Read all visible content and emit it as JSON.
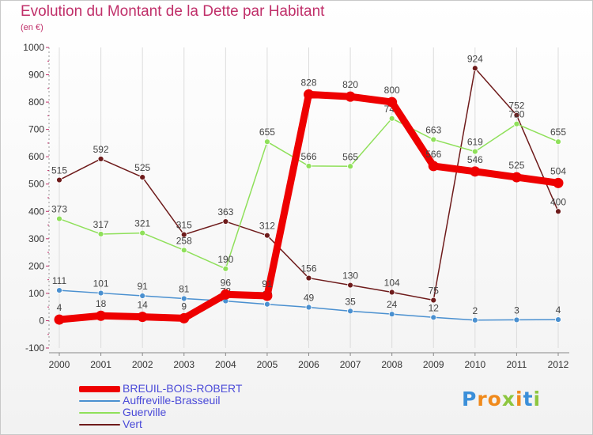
{
  "title": "Evolution du Montant de la Dette par Habitant",
  "subtitle": "(en €)",
  "brand": {
    "letters": [
      "P",
      "r",
      "o",
      "x",
      "i",
      "t",
      "i"
    ],
    "colors": [
      "#3b8fd9",
      "#f08a1c",
      "#f08a1c",
      "#8dc63f",
      "#f08a1c",
      "#3b8fd9",
      "#8dc63f"
    ]
  },
  "chart_data": {
    "type": "line",
    "x": [
      "2000",
      "2001",
      "2002",
      "2003",
      "2004",
      "2005",
      "2006",
      "2007",
      "2008",
      "2009",
      "2010",
      "2011",
      "2012"
    ],
    "ylim": [
      -100,
      1000
    ],
    "yticks": [
      "-100",
      "0",
      "100",
      "200",
      "300",
      "400",
      "500",
      "600",
      "700",
      "800",
      "900",
      "1000"
    ],
    "grid": "vertical",
    "legend_position": "bottom-left",
    "series": [
      {
        "name": "Vert",
        "color": "#6e1b1b",
        "values": [
          515,
          592,
          525,
          315,
          363,
          312,
          156,
          130,
          104,
          75,
          924,
          752,
          400
        ],
        "labels": [
          "515",
          "592",
          "525",
          "315",
          "363",
          "312",
          "156",
          "130",
          "104",
          "75",
          "924",
          "752",
          "400"
        ]
      },
      {
        "name": "Guerville",
        "color": "#8fe05a",
        "values": [
          373,
          317,
          321,
          258,
          190,
          655,
          566,
          565,
          740,
          663,
          619,
          720,
          655
        ],
        "labels": [
          "373",
          "317",
          "321",
          "258",
          "190",
          "655",
          "566",
          "565",
          "740",
          "663",
          "619",
          "720",
          "655"
        ]
      },
      {
        "name": "Auffreville-Brasseuil",
        "color": "#4a90d0",
        "values": [
          111,
          101,
          91,
          81,
          72,
          60,
          49,
          35,
          24,
          12,
          2,
          3,
          4
        ],
        "labels": [
          "111",
          "101",
          "91",
          "81",
          "72",
          "60",
          "49",
          "35",
          "24",
          "12",
          "2",
          "3",
          "4"
        ]
      },
      {
        "name": "BREUIL-BOIS-ROBERT",
        "color": "#ee0000",
        "values": [
          4,
          18,
          14,
          9,
          96,
          91,
          828,
          820,
          800,
          566,
          546,
          525,
          504
        ],
        "labels": [
          "4",
          "18",
          "14",
          "9",
          "96",
          "91",
          "828",
          "820",
          "800",
          "566",
          "546",
          "525",
          "504"
        ]
      }
    ],
    "legend": [
      {
        "name": "BREUIL-BOIS-ROBERT",
        "color": "#ee0000"
      },
      {
        "name": "Auffreville-Brasseuil",
        "color": "#4a90d0"
      },
      {
        "name": "Guerville",
        "color": "#8fe05a"
      },
      {
        "name": "Vert",
        "color": "#6e1b1b"
      }
    ]
  }
}
